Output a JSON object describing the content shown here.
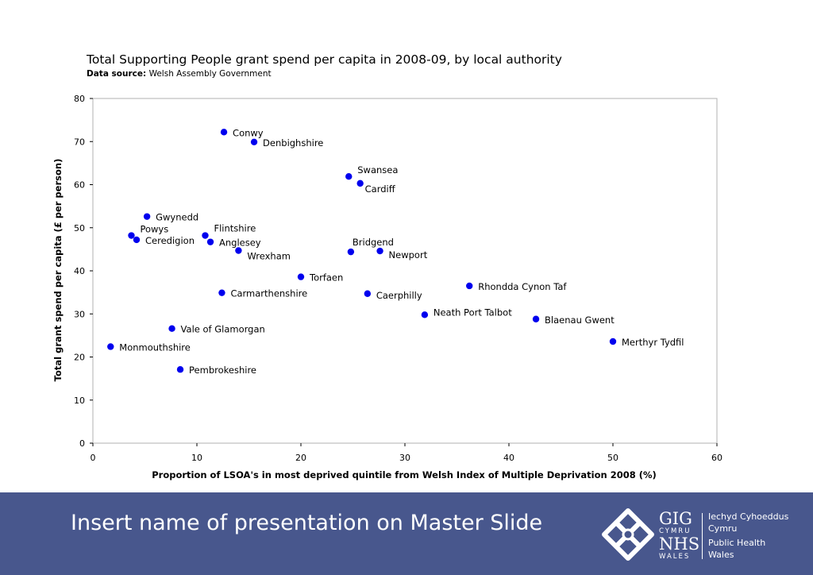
{
  "chart_data": {
    "type": "scatter",
    "title": "Total Supporting People grant spend per capita in 2008-09, by local authority",
    "source_label": "Data source:",
    "source_text": "Welsh Assembly Government",
    "xlabel": "Proportion of LSOA's in most deprived quintile from Welsh Index of Multiple Deprivation 2008 (%)",
    "ylabel": "Total grant spend per capita (£ per person)",
    "xlim": [
      0,
      60
    ],
    "ylim": [
      0,
      80
    ],
    "xticks": [
      "0",
      "10",
      "20",
      "30",
      "40",
      "50",
      "60"
    ],
    "yticks": [
      "0",
      "10",
      "20",
      "30",
      "40",
      "50",
      "60",
      "70",
      "80"
    ],
    "grid": false,
    "marker_color": "#0000ee",
    "points": [
      {
        "label": "Conwy",
        "x": 12.6,
        "y": 72.2
      },
      {
        "label": "Denbighshire",
        "x": 15.5,
        "y": 69.9
      },
      {
        "label": "Swansea",
        "x": 24.6,
        "y": 61.9
      },
      {
        "label": "Cardiff",
        "x": 25.7,
        "y": 60.3
      },
      {
        "label": "Gwynedd",
        "x": 5.2,
        "y": 52.6
      },
      {
        "label": "Powys",
        "x": 3.7,
        "y": 48.2
      },
      {
        "label": "Ceredigion",
        "x": 4.2,
        "y": 47.2
      },
      {
        "label": "Flintshire",
        "x": 10.8,
        "y": 48.2
      },
      {
        "label": "Anglesey",
        "x": 11.3,
        "y": 46.7
      },
      {
        "label": "Wrexham",
        "x": 14.0,
        "y": 44.7
      },
      {
        "label": "Bridgend",
        "x": 24.8,
        "y": 44.4
      },
      {
        "label": "Newport",
        "x": 27.6,
        "y": 44.6
      },
      {
        "label": "Torfaen",
        "x": 20.0,
        "y": 38.6
      },
      {
        "label": "Carmarthenshire",
        "x": 12.4,
        "y": 34.9
      },
      {
        "label": "Caerphilly",
        "x": 26.4,
        "y": 34.7
      },
      {
        "label": "Rhondda Cynon Taf",
        "x": 36.2,
        "y": 36.5
      },
      {
        "label": "Neath Port Talbot",
        "x": 31.9,
        "y": 29.8
      },
      {
        "label": "Blaenau Gwent",
        "x": 42.6,
        "y": 28.8
      },
      {
        "label": "Vale of Glamorgan",
        "x": 7.6,
        "y": 26.6
      },
      {
        "label": "Monmouthshire",
        "x": 1.7,
        "y": 22.4
      },
      {
        "label": "Merthyr Tydfil",
        "x": 50.0,
        "y": 23.6
      },
      {
        "label": "Pembrokeshire",
        "x": 8.4,
        "y": 17.1
      }
    ]
  },
  "footer": {
    "presentation_name": "Insert name of presentation on Master Slide",
    "background": "#48578d",
    "logo": {
      "gig": "GIG",
      "cymru": "CYMRU",
      "nhs": "NHS",
      "wales": "WALES",
      "line1": "Iechyd Cyhoeddus",
      "line2": "Cymru",
      "line3": "Public Health",
      "line4": "Wales"
    }
  }
}
